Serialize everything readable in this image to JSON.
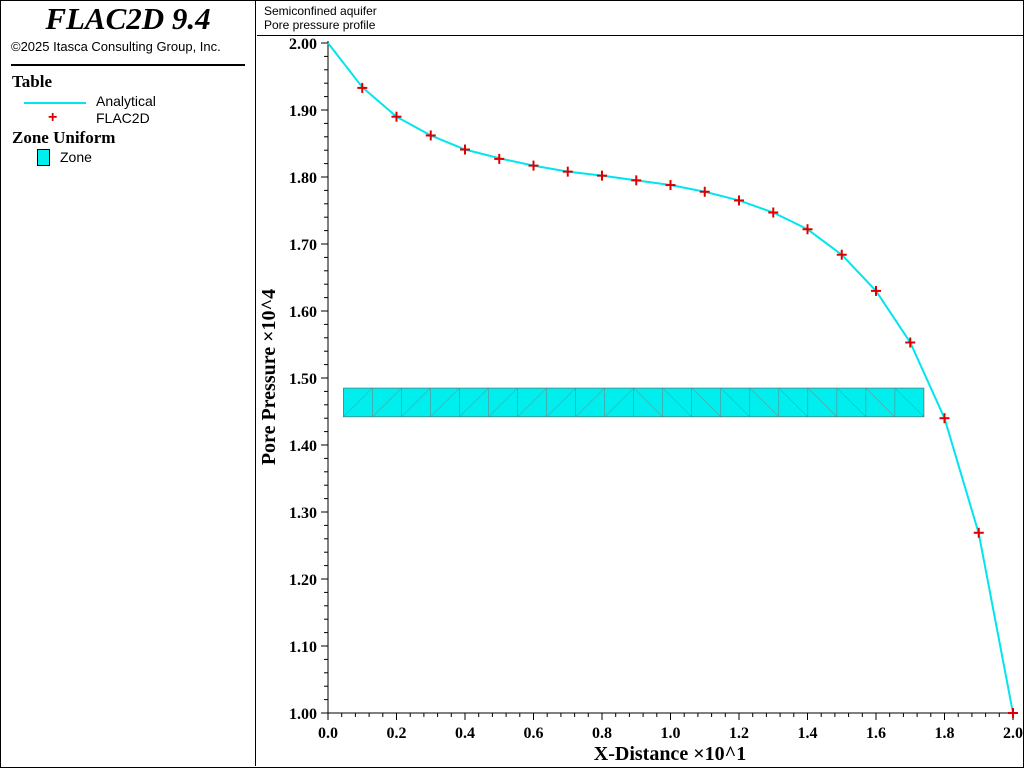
{
  "header": {
    "brand": "FLAC2D 9.4",
    "copyright": "©2025 Itasca Consulting Group, Inc."
  },
  "legend": {
    "table_heading": "Table",
    "analytical_label": "Analytical",
    "flac_label": "FLAC2D",
    "zone_heading": "Zone Uniform",
    "zone_label": "Zone"
  },
  "plot_title": {
    "line1": "Semiconfined aquifer",
    "line2": "Pore pressure profile"
  },
  "colors": {
    "analytical": "#00e5ee",
    "flac_marker": "#dd0000",
    "zone_fill": "#00eeee"
  },
  "chart_data": {
    "type": "line",
    "xlabel": "X-Distance ×10^1",
    "ylabel": "Pore Pressure ×10^4",
    "xlim": [
      0.0,
      2.0
    ],
    "ylim": [
      1.0,
      2.0
    ],
    "xticks": [
      "0.0",
      "0.2",
      "0.4",
      "0.6",
      "0.8",
      "1.0",
      "1.2",
      "1.4",
      "1.6",
      "1.8",
      "2.0"
    ],
    "yticks": [
      "1.00",
      "1.10",
      "1.20",
      "1.30",
      "1.40",
      "1.50",
      "1.60",
      "1.70",
      "1.80",
      "1.90",
      "2.00"
    ],
    "grid": false,
    "series": [
      {
        "name": "Analytical",
        "x": [
          0.0,
          0.1,
          0.2,
          0.3,
          0.4,
          0.5,
          0.6,
          0.7,
          0.8,
          0.9,
          1.0,
          1.1,
          1.2,
          1.3,
          1.4,
          1.5,
          1.6,
          1.7,
          1.8,
          1.9,
          2.0
        ],
        "y": [
          2.0,
          1.934,
          1.89,
          1.862,
          1.841,
          1.828,
          1.817,
          1.808,
          1.802,
          1.795,
          1.788,
          1.778,
          1.765,
          1.747,
          1.722,
          1.684,
          1.63,
          1.553,
          1.44,
          1.268,
          1.0
        ]
      },
      {
        "name": "FLAC2D",
        "x": [
          0.1,
          0.2,
          0.3,
          0.4,
          0.5,
          0.6,
          0.7,
          0.8,
          0.9,
          1.0,
          1.1,
          1.2,
          1.3,
          1.4,
          1.5,
          1.6,
          1.7,
          1.8,
          1.9,
          2.0
        ],
        "y": [
          1.933,
          1.89,
          1.862,
          1.841,
          1.827,
          1.817,
          1.808,
          1.802,
          1.795,
          1.788,
          1.778,
          1.765,
          1.747,
          1.722,
          1.684,
          1.63,
          1.553,
          1.44,
          1.269,
          1.0
        ]
      }
    ],
    "zone_strip": {
      "x_start": 0.045,
      "x_end": 1.74,
      "y_bottom": 1.442,
      "y_top": 1.485,
      "columns": 20
    }
  }
}
